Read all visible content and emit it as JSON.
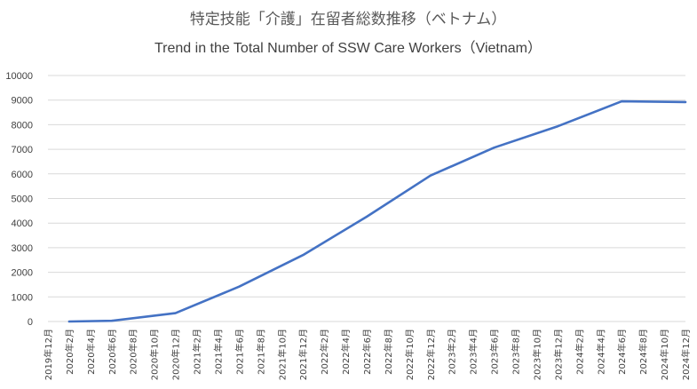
{
  "chart_data": {
    "type": "line",
    "title": "特定技能「介護」在留者総数推移（ベトナム）",
    "subtitle": "Trend in the Total Number of SSW Care Workers（Vietnam）",
    "xlabel": "",
    "ylabel": "",
    "ylim": [
      0,
      10000
    ],
    "yticks": [
      0,
      1000,
      2000,
      3000,
      4000,
      5000,
      6000,
      7000,
      8000,
      9000,
      10000
    ],
    "grid": true,
    "legend": "none",
    "categories": [
      "2019年12月",
      "2020年2月",
      "2020年4月",
      "2020年6月",
      "2020年8月",
      "2020年10月",
      "2020年12月",
      "2021年2月",
      "2021年4月",
      "2021年6月",
      "2021年8月",
      "2021年10月",
      "2021年12月",
      "2022年2月",
      "2022年4月",
      "2022年6月",
      "2022年8月",
      "2022年10月",
      "2022年12月",
      "2023年2月",
      "2023年4月",
      "2023年6月",
      "2023年8月",
      "2023年10月",
      "2023年12月",
      "2024年2月",
      "2024年4月",
      "2024年6月",
      "2024年8月",
      "2024年10月",
      "2024年12月"
    ],
    "series": [
      {
        "color": "#4472c4",
        "values": [
          null,
          0,
          null,
          30,
          null,
          null,
          340,
          null,
          null,
          1420,
          null,
          null,
          2700,
          null,
          null,
          4260,
          null,
          null,
          5930,
          null,
          null,
          7070,
          null,
          null,
          7940,
          null,
          null,
          8950,
          null,
          null,
          8920
        ]
      }
    ]
  }
}
